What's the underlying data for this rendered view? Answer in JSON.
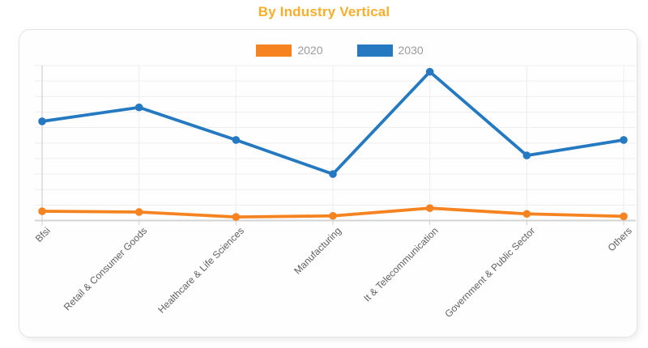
{
  "page": {
    "title": "By Industry Vertical",
    "title_color": "#F9AE2B"
  },
  "chart_data": {
    "type": "line",
    "title": "By Industry Vertical",
    "categories": [
      "Bfsi",
      "Retail & Consumer Goods",
      "Healthcare & Life Sciences",
      "Manufacturing",
      "It & Telecommunication",
      "Government & Public Sector",
      "Others"
    ],
    "series": [
      {
        "name": "2020",
        "color": "#F5831F",
        "marker": "circle",
        "values": [
          6,
          5.5,
          2.3,
          3,
          8,
          4.3,
          2.7
        ]
      },
      {
        "name": "2030",
        "color": "#2479C0",
        "marker": "circle",
        "values": [
          64,
          73,
          52,
          30,
          96,
          42,
          52
        ]
      }
    ],
    "xlabel": "",
    "ylabel": "",
    "ylim": [
      0,
      100
    ],
    "y_axis_labels_visible": false,
    "grid": true,
    "gridline_color": "#ededed",
    "axis_color": "#d4d4d4",
    "legend_position": "top-center",
    "x_label_rotation_deg": -45
  }
}
